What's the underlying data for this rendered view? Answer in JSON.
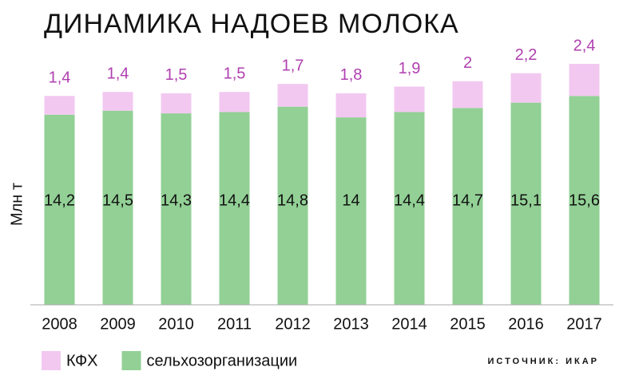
{
  "chart_data": {
    "type": "stacked-bar",
    "title": "ДИНАМИКА НАДОЕВ МОЛОКА",
    "y_label": "Млн т",
    "source": "ИСТОЧНИК: ИКАР",
    "categories": [
      "2008",
      "2009",
      "2010",
      "2011",
      "2012",
      "2013",
      "2014",
      "2015",
      "2016",
      "2017"
    ],
    "series": [
      {
        "name": "КФХ",
        "color": "#f2c8f0",
        "values": [
          1.4,
          1.4,
          1.5,
          1.5,
          1.7,
          1.8,
          1.9,
          2,
          2.2,
          2.4
        ],
        "value_labels": [
          "1,4",
          "1,4",
          "1,5",
          "1,5",
          "1,7",
          "1,8",
          "1,9",
          "2",
          "2,2",
          "2,4"
        ]
      },
      {
        "name": "сельхозорганизации",
        "color": "#92d095",
        "values": [
          14.2,
          14.5,
          14.3,
          14.4,
          14.8,
          14,
          14.4,
          14.7,
          15.1,
          15.6
        ],
        "value_labels": [
          "14,2",
          "14,5",
          "14,3",
          "14,4",
          "14,8",
          "14",
          "14,4",
          "14,7",
          "15,1",
          "15,6"
        ]
      }
    ],
    "ylim": [
      0,
      18
    ]
  }
}
